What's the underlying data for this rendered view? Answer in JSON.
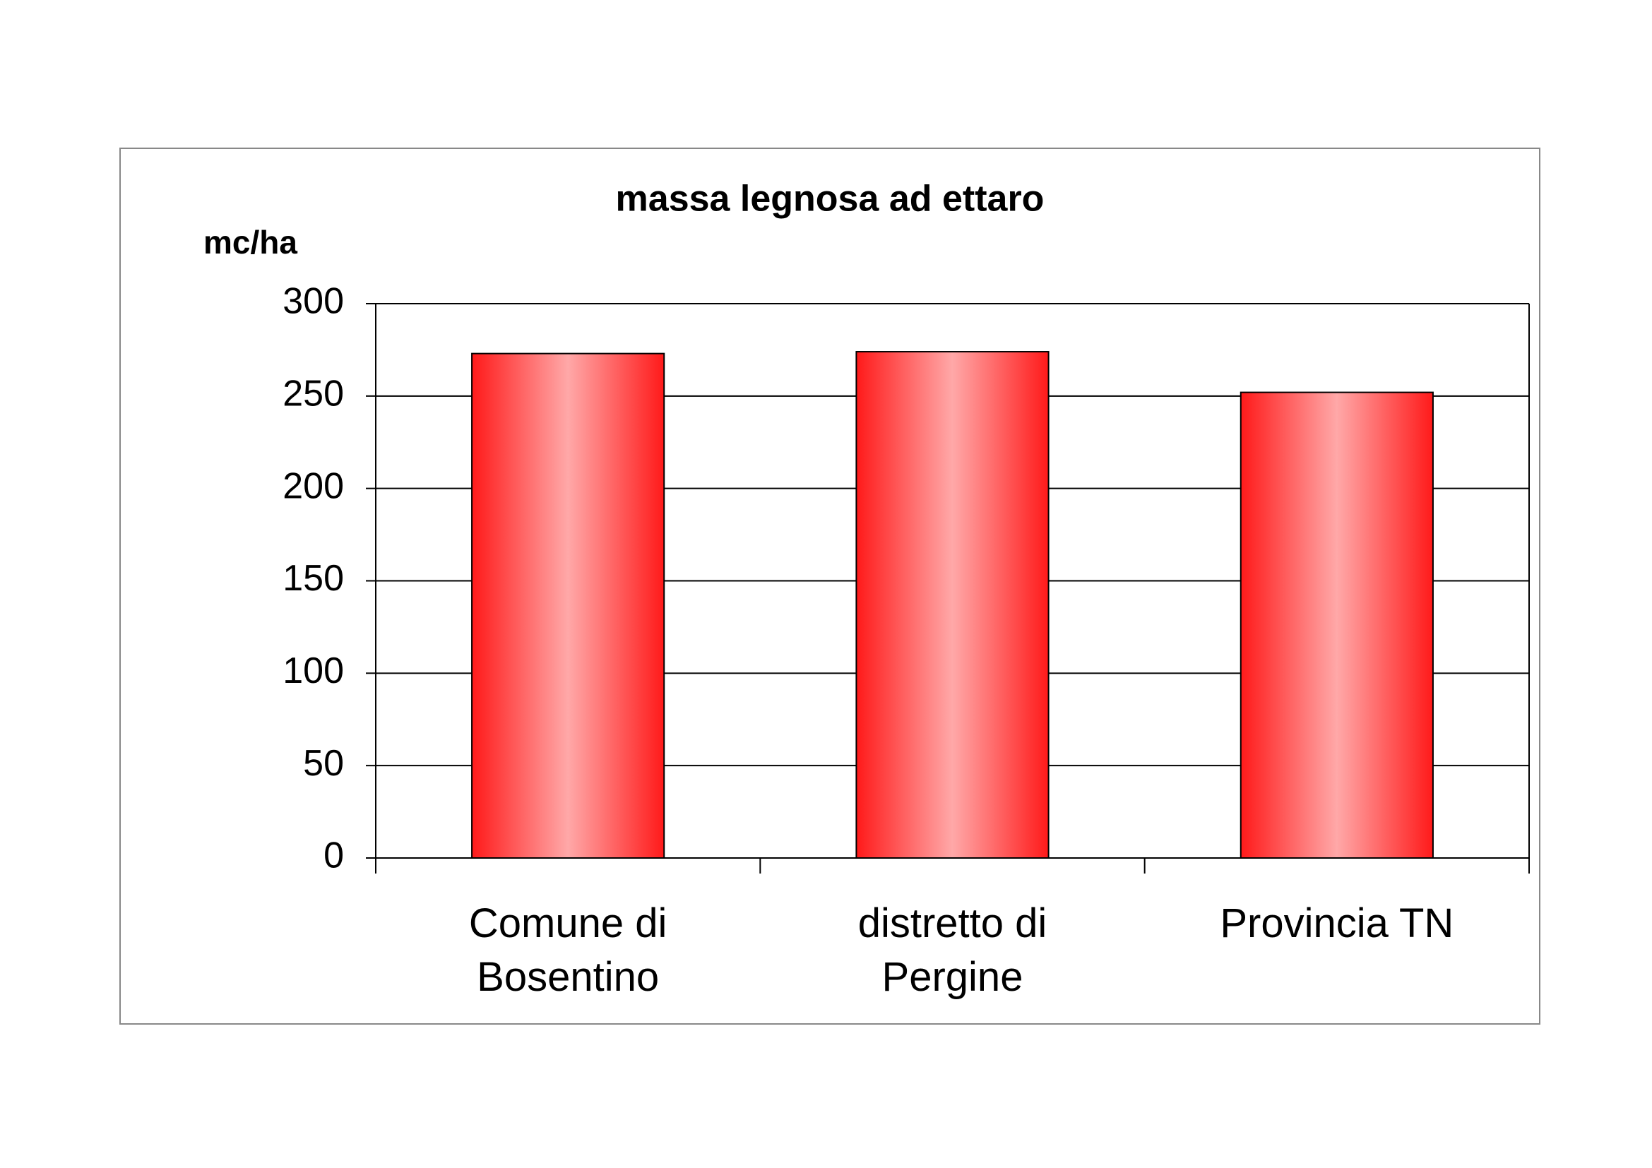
{
  "chart_data": {
    "type": "bar",
    "title": "massa legnosa ad ettaro",
    "y_label": "mc/ha",
    "categories": [
      "Comune di Bosentino",
      "distretto di Pergine",
      "Provincia TN"
    ],
    "values": [
      273,
      274,
      252
    ],
    "color": "#ff2020",
    "ylim": [
      0,
      300
    ],
    "yticks": [
      0,
      50,
      100,
      150,
      200,
      250,
      300
    ],
    "grid": true
  }
}
